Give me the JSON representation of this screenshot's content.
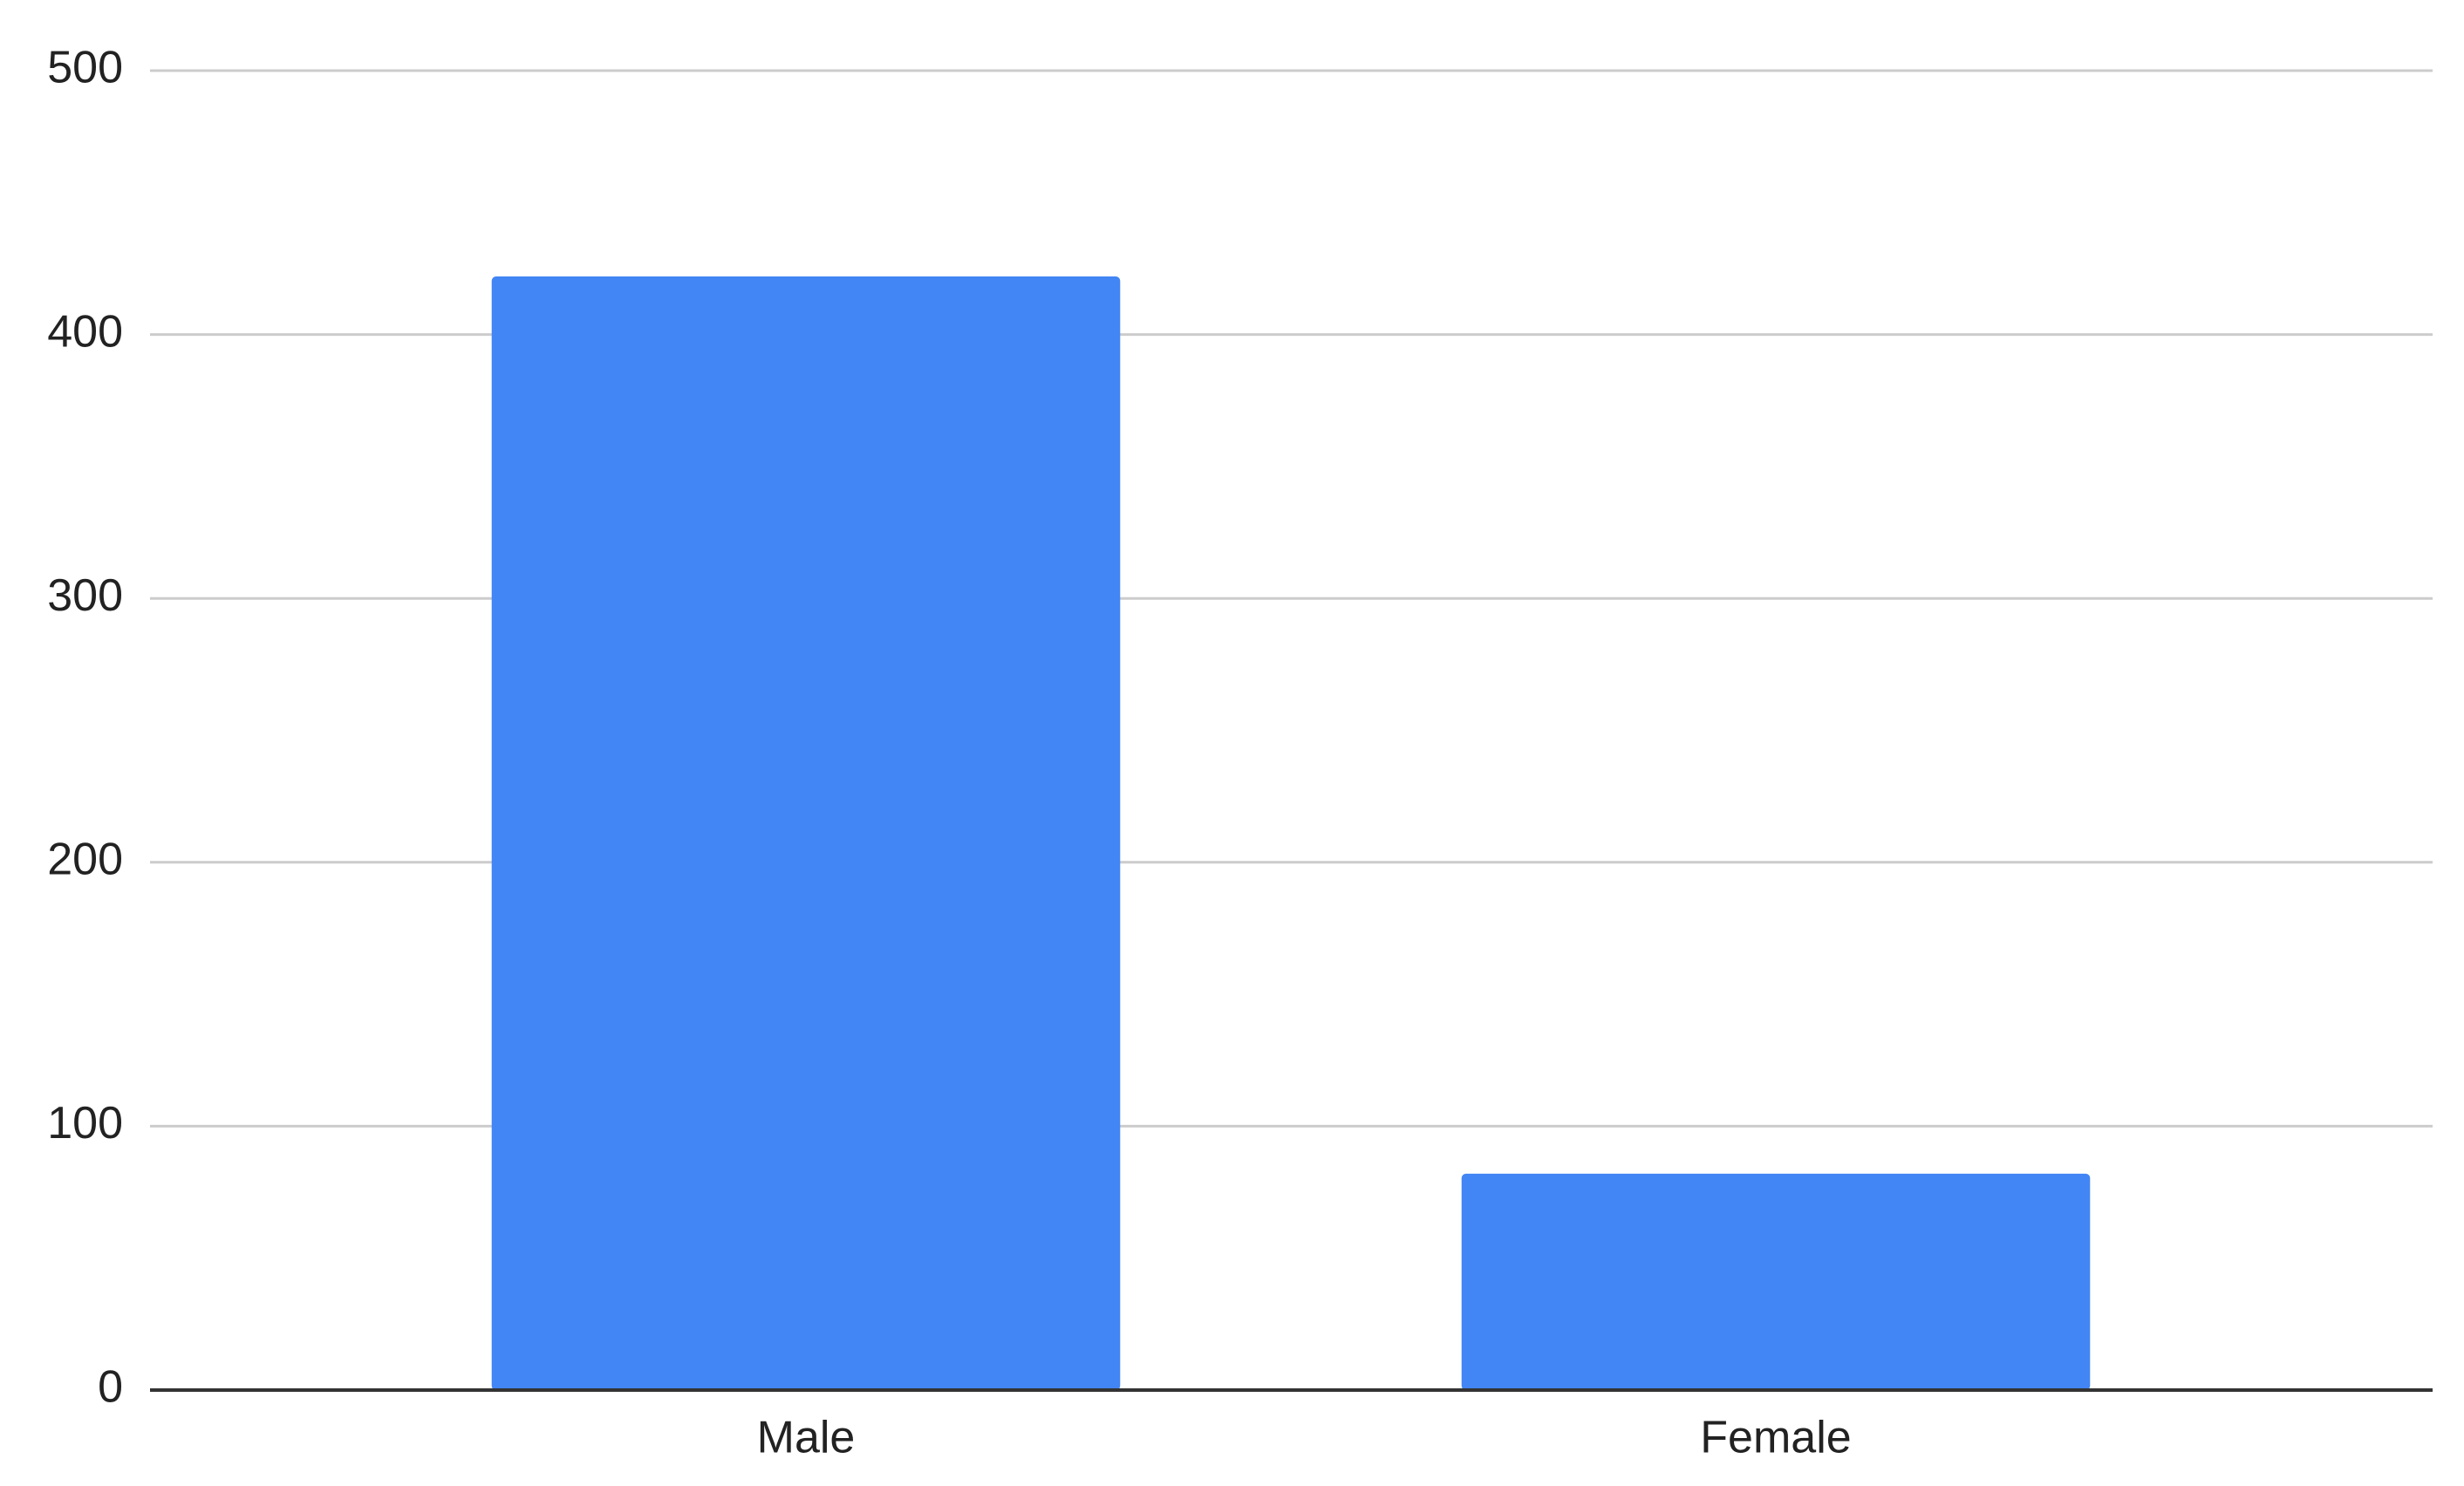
{
  "chart_data": {
    "type": "bar",
    "categories": [
      "Male",
      "Female"
    ],
    "values": [
      422,
      82
    ],
    "color": "#4285f4",
    "ylim": [
      0,
      500
    ],
    "yticks": [
      0,
      100,
      200,
      300,
      400,
      500
    ],
    "grid": true
  }
}
